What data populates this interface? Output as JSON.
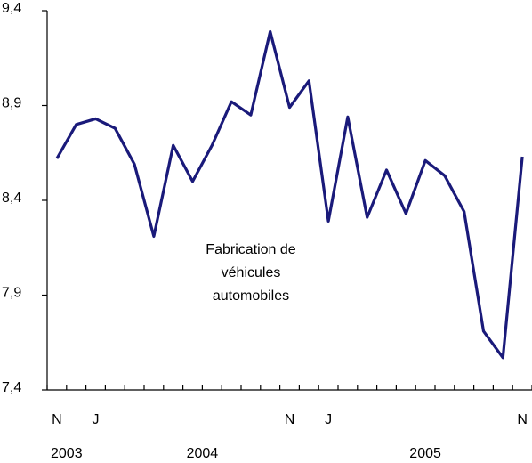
{
  "chart_data": {
    "type": "line",
    "categories": [
      "N",
      null,
      "J",
      null,
      null,
      null,
      null,
      null,
      null,
      null,
      null,
      null,
      "N",
      null,
      "J",
      null,
      null,
      null,
      null,
      null,
      null,
      null,
      null,
      null,
      "N"
    ],
    "groups": [
      {
        "label": "2003",
        "from": 0,
        "to": 1
      },
      {
        "label": "2004",
        "from": 2,
        "to": 13
      },
      {
        "label": "2005",
        "from": 14,
        "to": 24
      }
    ],
    "series": [
      {
        "color": "#1a1a7a",
        "values": [
          8.62,
          8.8,
          8.83,
          8.78,
          8.59,
          8.21,
          8.69,
          8.5,
          8.69,
          8.92,
          8.85,
          9.29,
          8.89,
          9.03,
          8.29,
          8.84,
          8.31,
          8.56,
          8.33,
          8.61,
          8.53,
          8.34,
          7.71,
          7.57,
          8.63
        ]
      }
    ],
    "annotation": [
      "Fabrication de",
      "véhicules",
      "automobiles"
    ],
    "ylim": [
      7.4,
      9.4
    ],
    "yticks": [
      {
        "value": 7.4,
        "label": "7,4"
      },
      {
        "value": 7.9,
        "label": "7,9"
      },
      {
        "value": 8.4,
        "label": "8,4"
      },
      {
        "value": 8.9,
        "label": "8,9"
      },
      {
        "value": 9.4,
        "label": "9,4"
      }
    ]
  }
}
